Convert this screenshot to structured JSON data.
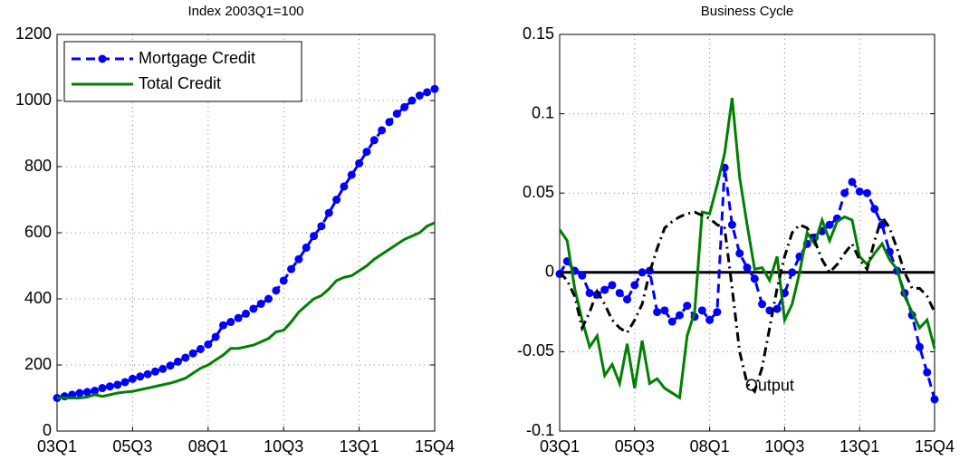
{
  "chart_data": [
    {
      "type": "line",
      "title": "Index 2003Q1=100",
      "categories": [
        "03Q1",
        null,
        null,
        null,
        null,
        null,
        null,
        null,
        null,
        null,
        "05Q3",
        null,
        null,
        null,
        null,
        null,
        null,
        null,
        null,
        null,
        "08Q1",
        null,
        null,
        null,
        null,
        null,
        null,
        null,
        null,
        null,
        "10Q3",
        null,
        null,
        null,
        null,
        null,
        null,
        null,
        null,
        null,
        "13Q1",
        null,
        null,
        null,
        null,
        null,
        null,
        null,
        null,
        null,
        "15Q4"
      ],
      "ylim": [
        0,
        1200
      ],
      "yticks": [
        0,
        200,
        400,
        600,
        800,
        1000,
        1200
      ],
      "grid": true,
      "legend": "upper-left",
      "series": [
        {
          "name": "Mortgage Credit",
          "color": "#0000ff",
          "style": "dashed-dots",
          "values": [
            100,
            105,
            110,
            115,
            118,
            122,
            130,
            135,
            140,
            148,
            158,
            165,
            172,
            180,
            188,
            198,
            210,
            222,
            235,
            248,
            262,
            285,
            320,
            330,
            342,
            355,
            370,
            385,
            400,
            425,
            455,
            490,
            520,
            555,
            590,
            620,
            660,
            700,
            740,
            775,
            810,
            845,
            880,
            910,
            935,
            960,
            980,
            1000,
            1015,
            1025,
            1035
          ]
        },
        {
          "name": "Total Credit",
          "color": "#008000",
          "style": "solid",
          "values": [
            100,
            100,
            100,
            100,
            103,
            110,
            105,
            110,
            115,
            118,
            120,
            125,
            130,
            135,
            140,
            145,
            152,
            160,
            175,
            190,
            200,
            215,
            230,
            250,
            250,
            255,
            260,
            270,
            280,
            300,
            305,
            330,
            360,
            380,
            400,
            410,
            430,
            455,
            465,
            470,
            485,
            500,
            520,
            535,
            550,
            565,
            580,
            590,
            600,
            620,
            630
          ]
        }
      ]
    },
    {
      "type": "line",
      "title": "Business Cycle",
      "categories": [
        "03Q1",
        null,
        null,
        null,
        null,
        null,
        null,
        null,
        null,
        null,
        "05Q3",
        null,
        null,
        null,
        null,
        null,
        null,
        null,
        null,
        null,
        "08Q1",
        null,
        null,
        null,
        null,
        null,
        null,
        null,
        null,
        null,
        "10Q3",
        null,
        null,
        null,
        null,
        null,
        null,
        null,
        null,
        null,
        "13Q1",
        null,
        null,
        null,
        null,
        null,
        null,
        null,
        null,
        null,
        "15Q4"
      ],
      "ylim": [
        -0.1,
        0.15
      ],
      "yticks": [
        -0.1,
        -0.05,
        0,
        0.05,
        0.1,
        0.15
      ],
      "grid": true,
      "hline": 0,
      "annotation": "Output",
      "series": [
        {
          "color": "#0000ff",
          "style": "dashed-dots",
          "values": [
            -0.001,
            0.007,
            0.001,
            -0.002,
            -0.013,
            -0.014,
            -0.011,
            -0.008,
            -0.013,
            -0.017,
            -0.008,
            0,
            0.001,
            -0.025,
            -0.024,
            -0.031,
            -0.027,
            -0.021,
            -0.028,
            -0.024,
            -0.03,
            -0.025,
            0.066,
            0.03,
            0.012,
            0.003,
            -0.004,
            -0.02,
            -0.024,
            -0.023,
            -0.013,
            0,
            0.01,
            0.018,
            0.022,
            0.026,
            0.03,
            0.034,
            0.05,
            0.057,
            0.051,
            0.05,
            0.04,
            0.03,
            0.013,
            0.001,
            -0.013,
            -0.027,
            -0.047,
            -0.063,
            -0.08
          ]
        },
        {
          "color": "#008000",
          "style": "solid",
          "values": [
            0.027,
            0.02,
            -0.01,
            -0.03,
            -0.047,
            -0.04,
            -0.065,
            -0.058,
            -0.07,
            -0.045,
            -0.073,
            -0.043,
            -0.07,
            -0.067,
            -0.073,
            -0.076,
            -0.079,
            -0.04,
            -0.025,
            0.038,
            0.037,
            0.055,
            0.075,
            0.11,
            0.06,
            0.03,
            0.002,
            0.003,
            -0.005,
            0.01,
            -0.03,
            -0.02,
            0,
            0.025,
            0.018,
            0.033,
            0.02,
            0.032,
            0.035,
            0.033,
            0.01,
            0.005,
            0.012,
            0.018,
            0.008,
            0.002,
            -0.015,
            -0.025,
            -0.035,
            -0.03,
            -0.048
          ]
        },
        {
          "color": "#000000",
          "style": "dash-dot",
          "values": [
            0,
            -0.005,
            -0.015,
            -0.035,
            -0.025,
            -0.012,
            -0.02,
            -0.03,
            -0.035,
            -0.038,
            -0.03,
            -0.02,
            0,
            0.015,
            0.028,
            0.032,
            0.035,
            0.037,
            0.038,
            0.036,
            0.034,
            0.03,
            0.028,
            -0.01,
            -0.05,
            -0.07,
            -0.075,
            -0.06,
            -0.035,
            -0.01,
            0.01,
            0.025,
            0.03,
            0.028,
            0.02,
            0.008,
            0,
            0.005,
            0.012,
            0.018,
            0.008,
            0.002,
            0.02,
            0.035,
            0.028,
            0.015,
            0,
            -0.01,
            -0.01,
            -0.015,
            -0.025
          ]
        }
      ]
    }
  ]
}
